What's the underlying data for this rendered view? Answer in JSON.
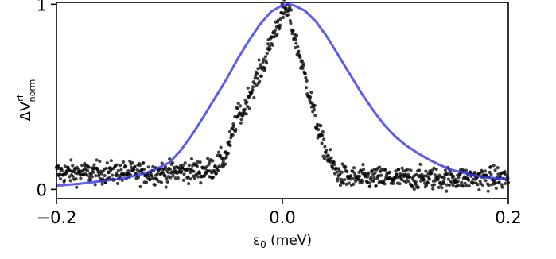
{
  "chart_data": {
    "type": "scatter",
    "xlabel_main": "ε",
    "xlabel_sub": "0",
    "xlabel_unit": " (meV)",
    "ylabel_main": "ΔV",
    "ylabel_sup": "rf",
    "ylabel_sub": "norm",
    "xlim": [
      -0.2,
      0.2
    ],
    "ylim": [
      -0.05,
      1.01
    ],
    "xticks": [
      -0.2,
      0.0,
      0.2
    ],
    "xtick_labels": [
      "−0.2",
      "0.0",
      "0.2"
    ],
    "yticks": [
      0,
      1
    ],
    "ytick_labels": [
      "0",
      "1"
    ],
    "grid": false,
    "legend": "none",
    "series": [
      {
        "style": "line",
        "color": "#3333ee",
        "x": [
          -0.2,
          -0.18,
          -0.16,
          -0.14,
          -0.12,
          -0.11,
          -0.1,
          -0.09,
          -0.08,
          -0.07,
          -0.06,
          -0.05,
          -0.04,
          -0.03,
          -0.02,
          -0.01,
          0.0,
          0.005,
          0.01,
          0.02,
          0.03,
          0.04,
          0.05,
          0.06,
          0.07,
          0.08,
          0.09,
          0.1,
          0.11,
          0.12,
          0.13,
          0.14,
          0.15,
          0.16,
          0.17,
          0.18,
          0.19,
          0.2
        ],
        "y": [
          0.02,
          0.03,
          0.045,
          0.06,
          0.09,
          0.115,
          0.145,
          0.21,
          0.295,
          0.39,
          0.49,
          0.59,
          0.7,
          0.8,
          0.89,
          0.96,
          0.995,
          1.0,
          0.995,
          0.965,
          0.905,
          0.82,
          0.72,
          0.62,
          0.52,
          0.43,
          0.35,
          0.285,
          0.235,
          0.195,
          0.16,
          0.13,
          0.105,
          0.09,
          0.075,
          0.065,
          0.06,
          0.055
        ]
      },
      {
        "style": "scatter",
        "color": "#000000",
        "noise": 0.03,
        "baseline": 0.09,
        "x": [
          -0.2,
          -0.1,
          -0.09,
          -0.08,
          -0.07,
          -0.06,
          -0.05,
          -0.045,
          -0.04,
          -0.035,
          -0.03,
          -0.025,
          -0.02,
          -0.015,
          -0.01,
          -0.005,
          0.0,
          0.003,
          0.006,
          0.01,
          0.015,
          0.02,
          0.025,
          0.03,
          0.035,
          0.04,
          0.045,
          0.05,
          0.06,
          0.08,
          0.1,
          0.2
        ],
        "y": [
          0.09,
          0.09,
          0.1,
          0.1,
          0.1,
          0.12,
          0.18,
          0.28,
          0.4,
          0.41,
          0.5,
          0.57,
          0.63,
          0.7,
          0.8,
          0.88,
          0.95,
          0.97,
          0.95,
          0.84,
          0.73,
          0.61,
          0.49,
          0.36,
          0.26,
          0.18,
          0.12,
          0.08,
          0.06,
          0.06,
          0.06,
          0.06
        ]
      }
    ]
  }
}
